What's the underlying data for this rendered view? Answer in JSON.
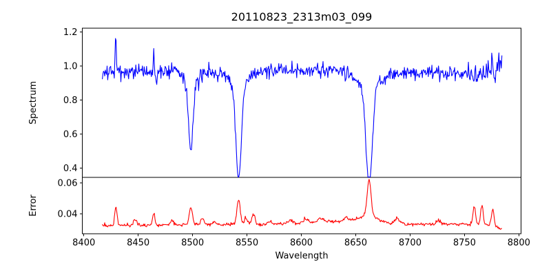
{
  "colors": {
    "background": "#ffffff",
    "axis": "#000000",
    "spectrum_line": "#0000ff",
    "error_line": "#ff0000"
  },
  "chart_data": {
    "type": "line",
    "title": "20110823_2313m03_099",
    "xlabel": "Wavelength",
    "xlim": [
      8398.6,
      8802.0
    ],
    "x_ticks": [
      8400,
      8450,
      8500,
      8550,
      8600,
      8650,
      8700,
      8750,
      8800
    ],
    "x_tick_labels": [
      "8400",
      "8450",
      "8500",
      "8550",
      "8600",
      "8650",
      "8700",
      "8750",
      "8800"
    ],
    "x_data_range": [
      8417,
      8784.5
    ],
    "sample_step": 0.55,
    "legend": "none",
    "grid": false,
    "panels": [
      {
        "name": "spectrum",
        "ylabel": "Spectrum",
        "line_color": "#0000ff",
        "ylim": [
          0.3437,
          1.2231
        ],
        "y_ticks": [
          0.4,
          0.6,
          0.8,
          1.0,
          1.2
        ],
        "y_tick_labels": [
          "0.4",
          "0.6",
          "0.8",
          "1.0",
          "1.2"
        ],
        "continuum_anchors": [
          [
            8417,
            0.952
          ],
          [
            8430,
            0.968
          ],
          [
            8450,
            0.97
          ],
          [
            8500,
            0.972
          ],
          [
            8550,
            0.975
          ],
          [
            8600,
            0.973
          ],
          [
            8620,
            0.978
          ],
          [
            8650,
            0.975
          ],
          [
            8700,
            0.965
          ],
          [
            8740,
            0.96
          ],
          [
            8760,
            0.955
          ],
          [
            8775,
            0.965
          ],
          [
            8784.5,
            1.005
          ]
        ],
        "absorption_lines": [
          {
            "center": 8498.4,
            "core_depth": 0.4,
            "core_sigma": 2.1,
            "wing_depth": 0.055,
            "wing_sigma": 7,
            "min_value": 0.57
          },
          {
            "center": 8542.3,
            "core_depth": 0.56,
            "core_sigma": 2.5,
            "wing_depth": 0.075,
            "wing_sigma": 9,
            "min_value": 0.41
          },
          {
            "center": 8662.3,
            "core_depth": 0.59,
            "core_sigma": 2.9,
            "wing_depth": 0.085,
            "wing_sigma": 12,
            "min_value": 0.38
          },
          {
            "center": 8466.5,
            "core_depth": 0.075,
            "core_sigma": 0.9,
            "wing_depth": 0,
            "wing_sigma": 1,
            "min_value": 0.88
          }
        ],
        "emission_spikes": [
          {
            "center": 8429.4,
            "height": 0.21,
            "sigma": 0.5,
            "peak_value": 1.19
          },
          {
            "center": 8464.2,
            "height": 0.11,
            "sigma": 0.5,
            "peak_value": 1.1
          }
        ],
        "noise": {
          "scale_vs_error": 0.55,
          "downspike_prob": 0.05,
          "downspike_max": 0.05,
          "boost_region": [
            8748,
            8784.5
          ],
          "boost_max": 2.3
        }
      },
      {
        "name": "error",
        "ylabel": "Error",
        "line_color": "#ff0000",
        "ylim": [
          0.0272,
          0.06347
        ],
        "y_ticks": [
          0.04,
          0.06
        ],
        "y_tick_labels": [
          "0.04",
          "0.06"
        ],
        "baseline_anchors": [
          [
            8417,
            0.0323
          ],
          [
            8450,
            0.0325
          ],
          [
            8480,
            0.0328
          ],
          [
            8520,
            0.033
          ],
          [
            8560,
            0.0332
          ],
          [
            8600,
            0.0338
          ],
          [
            8625,
            0.035
          ],
          [
            8650,
            0.0355
          ],
          [
            8670,
            0.0345
          ],
          [
            8700,
            0.0332
          ],
          [
            8740,
            0.0333
          ],
          [
            8770,
            0.033
          ],
          [
            8779,
            0.0315
          ],
          [
            8784.5,
            0.03
          ]
        ],
        "peaks": [
          {
            "center": 8429.5,
            "height": 0.0125,
            "sigma": 1.1
          },
          {
            "center": 8447.0,
            "height": 0.0035,
            "sigma": 1.8
          },
          {
            "center": 8464.3,
            "height": 0.008,
            "sigma": 1.1
          },
          {
            "center": 8481.0,
            "height": 0.003,
            "sigma": 1.5
          },
          {
            "center": 8498.4,
            "height": 0.0115,
            "sigma": 1.5
          },
          {
            "center": 8509.0,
            "height": 0.0045,
            "sigma": 1.4
          },
          {
            "center": 8520.0,
            "height": 0.002,
            "sigma": 1.5
          },
          {
            "center": 8542.3,
            "height": 0.016,
            "sigma": 1.5
          },
          {
            "center": 8549.0,
            "height": 0.004,
            "sigma": 1.5
          },
          {
            "center": 8556.0,
            "height": 0.006,
            "sigma": 1.5
          },
          {
            "center": 8571.0,
            "height": 0.002,
            "sigma": 1.5
          },
          {
            "center": 8590.0,
            "height": 0.002,
            "sigma": 2.0
          },
          {
            "center": 8604.0,
            "height": 0.0025,
            "sigma": 2.0
          },
          {
            "center": 8618.0,
            "height": 0.002,
            "sigma": 2.5
          },
          {
            "center": 8641.0,
            "height": 0.0025,
            "sigma": 2.0
          },
          {
            "center": 8662.3,
            "height": 0.0225,
            "sigma": 1.7
          },
          {
            "center": 8662.0,
            "height": 0.0045,
            "sigma": 7.0
          },
          {
            "center": 8688.0,
            "height": 0.0035,
            "sigma": 1.8
          },
          {
            "center": 8726.0,
            "height": 0.0015,
            "sigma": 2.0
          },
          {
            "center": 8759.0,
            "height": 0.0118,
            "sigma": 1.2
          },
          {
            "center": 8766.0,
            "height": 0.0118,
            "sigma": 1.2
          },
          {
            "center": 8776.0,
            "height": 0.0108,
            "sigma": 1.2
          }
        ],
        "noise_sigma": 0.0005,
        "max_value": 0.062
      }
    ]
  }
}
